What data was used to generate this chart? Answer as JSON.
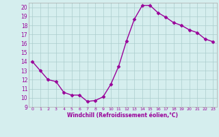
{
  "x": [
    0,
    1,
    2,
    3,
    4,
    5,
    6,
    7,
    8,
    9,
    10,
    11,
    12,
    13,
    14,
    15,
    16,
    17,
    18,
    19,
    20,
    21,
    22,
    23
  ],
  "y": [
    14,
    13,
    12,
    11.8,
    10.6,
    10.3,
    10.3,
    9.6,
    9.7,
    10.1,
    11.5,
    13.5,
    16.3,
    18.7,
    20.2,
    20.2,
    19.4,
    18.9,
    18.3,
    18.0,
    17.5,
    17.2,
    16.5,
    16.2
  ],
  "line_color": "#990099",
  "marker": "D",
  "marker_size": 2.5,
  "bg_color": "#d5eeee",
  "grid_color": "#aacccc",
  "xlabel": "Windchill (Refroidissement éolien,°C)",
  "xlabel_color": "#990099",
  "tick_color": "#990099",
  "ylim": [
    9,
    20.5
  ],
  "xlim": [
    -0.5,
    23.5
  ],
  "yticks": [
    9,
    10,
    11,
    12,
    13,
    14,
    15,
    16,
    17,
    18,
    19,
    20
  ],
  "xticks": [
    0,
    1,
    2,
    3,
    4,
    5,
    6,
    7,
    8,
    9,
    10,
    11,
    12,
    13,
    14,
    15,
    16,
    17,
    18,
    19,
    20,
    21,
    22,
    23
  ],
  "spine_color": "#aaaaaa",
  "linewidth": 1.0
}
